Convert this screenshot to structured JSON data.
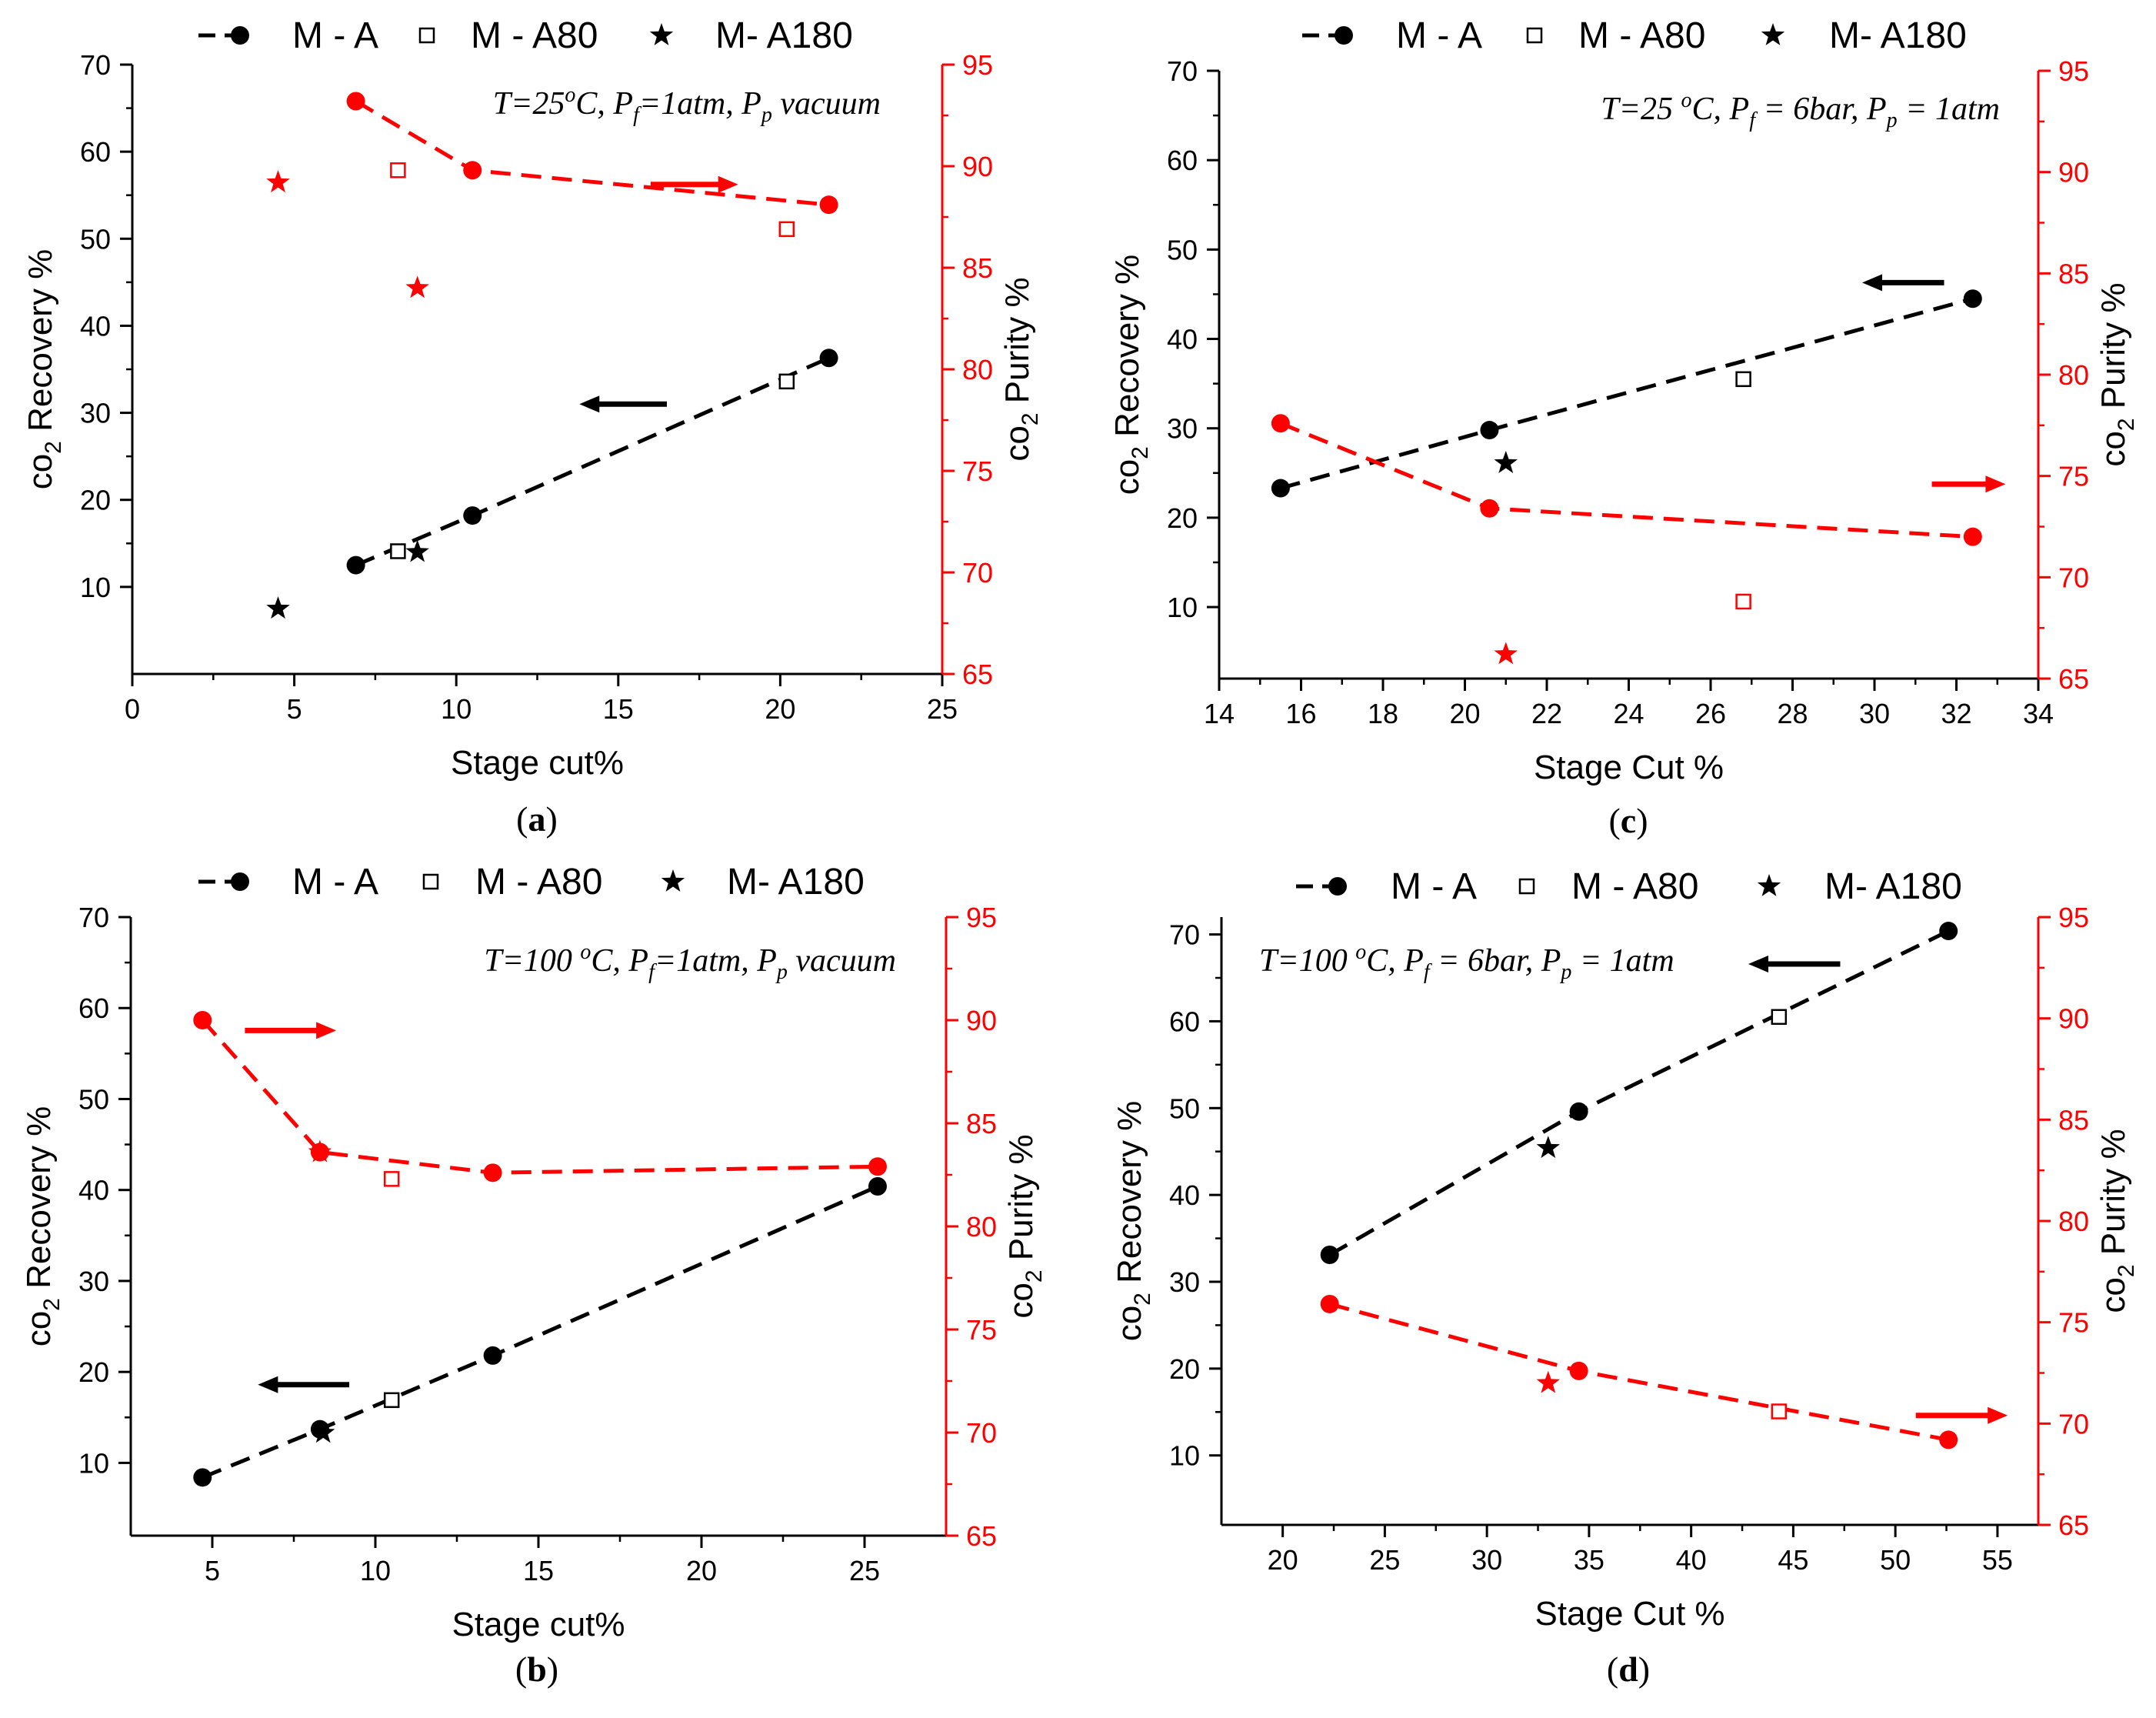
{
  "figure": {
    "legend": {
      "ma": "M - A",
      "a80": "M - A80",
      "a180": "M- A180"
    },
    "colors": {
      "black": "#000000",
      "red": "#ff0000"
    }
  },
  "chart_data": [
    {
      "id": "a",
      "type": "scatter",
      "panel_label": "a",
      "annotation": {
        "T": "T=25",
        "o": "o",
        "C": "C, P",
        "f": "f",
        "eq": "=1atm, P",
        "p": "p",
        "tail": " vacuum"
      },
      "xlabel": "Stage cut%",
      "ylabel_left": {
        "pre": "co",
        "sub": "2",
        "post": " Recovery %"
      },
      "ylabel_right": {
        "pre": "co",
        "sub": "2",
        "post": " Purity %"
      },
      "xlim": [
        0,
        25
      ],
      "xticks": [
        0,
        5,
        10,
        15,
        20,
        25
      ],
      "ylim_left": [
        0,
        70
      ],
      "yticks_left": [
        10,
        20,
        30,
        40,
        50,
        60,
        70
      ],
      "ylim_right": [
        65,
        95
      ],
      "yticks_right": [
        65,
        70,
        75,
        80,
        85,
        90,
        95
      ],
      "series": [
        {
          "name": "M - A",
          "axis": "left",
          "marker": "circle",
          "color": "#000000",
          "line": true,
          "x": [
            6.9,
            10.5,
            21.5
          ],
          "y": [
            12.5,
            18.2,
            36.3
          ]
        },
        {
          "name": "M - A80",
          "axis": "left",
          "marker": "square",
          "color": "#000000",
          "line": false,
          "x": [
            8.2,
            20.2
          ],
          "y": [
            14.1,
            33.6
          ]
        },
        {
          "name": "M- A180",
          "axis": "left",
          "marker": "star",
          "color": "#000000",
          "line": false,
          "x": [
            4.5,
            8.8
          ],
          "y": [
            7.5,
            14.0
          ]
        },
        {
          "name": "M - A",
          "axis": "right",
          "marker": "circle",
          "color": "#ff0000",
          "line": true,
          "x": [
            6.9,
            10.5,
            21.5
          ],
          "y": [
            93.2,
            89.8,
            88.1
          ]
        },
        {
          "name": "M - A80",
          "axis": "right",
          "marker": "square",
          "color": "#ff0000",
          "line": false,
          "x": [
            8.2,
            20.2
          ],
          "y": [
            89.8,
            86.9
          ]
        },
        {
          "name": "M- A180",
          "axis": "right",
          "marker": "star",
          "color": "#ff0000",
          "line": false,
          "x": [
            4.5,
            8.8
          ],
          "y": [
            89.2,
            84.0
          ]
        }
      ],
      "arrows": [
        {
          "color": "#ff0000",
          "direction": "right",
          "x": [
            16,
            18.7
          ],
          "y": 89.1,
          "axis": "right"
        },
        {
          "color": "#000000",
          "direction": "left",
          "x": [
            13.8,
            16.5
          ],
          "y": 31,
          "axis": "left"
        }
      ]
    },
    {
      "id": "c",
      "type": "scatter",
      "panel_label": "c",
      "annotation": {
        "T": "T=25 ",
        "o": "o",
        "C": "C, P",
        "f": "f",
        "eq": " = 6bar, P",
        "p": "p",
        "tail": " = 1atm"
      },
      "xlabel": "Stage Cut %",
      "ylabel_left": {
        "pre": "co",
        "sub": "2",
        "post": " Recovery %"
      },
      "ylabel_right": {
        "pre": "co",
        "sub": "2",
        "post": " Purity %"
      },
      "xlim": [
        14,
        34
      ],
      "xticks": [
        14,
        16,
        18,
        20,
        22,
        24,
        26,
        28,
        30,
        32,
        34
      ],
      "ylim_left": [
        2,
        70
      ],
      "yticks_left": [
        10,
        20,
        30,
        40,
        50,
        60,
        70
      ],
      "ylim_right": [
        65,
        95
      ],
      "yticks_right": [
        65,
        70,
        75,
        80,
        85,
        90,
        95
      ],
      "series": [
        {
          "name": "M - A",
          "axis": "left",
          "marker": "circle",
          "color": "#000000",
          "line": true,
          "x": [
            15.5,
            20.6,
            32.4
          ],
          "y": [
            23.3,
            29.8,
            44.5
          ]
        },
        {
          "name": "M - A80",
          "axis": "left",
          "marker": "square",
          "color": "#000000",
          "line": false,
          "x": [
            26.8
          ],
          "y": [
            35.5
          ]
        },
        {
          "name": "M- A180",
          "axis": "left",
          "marker": "star",
          "color": "#000000",
          "line": false,
          "x": [
            21.0
          ],
          "y": [
            26.1
          ]
        },
        {
          "name": "M - A",
          "axis": "right",
          "marker": "circle",
          "color": "#ff0000",
          "line": true,
          "x": [
            15.5,
            20.6,
            32.4
          ],
          "y": [
            77.6,
            73.4,
            72.0
          ]
        },
        {
          "name": "M - A80",
          "axis": "right",
          "marker": "square",
          "color": "#ff0000",
          "line": false,
          "x": [
            26.8
          ],
          "y": [
            68.8
          ]
        },
        {
          "name": "M- A180",
          "axis": "right",
          "marker": "star",
          "color": "#ff0000",
          "line": false,
          "x": [
            21.0
          ],
          "y": [
            66.2
          ]
        }
      ],
      "arrows": [
        {
          "color": "#000000",
          "direction": "left",
          "x": [
            29.7,
            31.7
          ],
          "y": 46.3,
          "axis": "left"
        },
        {
          "color": "#ff0000",
          "direction": "right",
          "x": [
            31.4,
            33.2
          ],
          "y": 74.6,
          "axis": "right"
        }
      ]
    },
    {
      "id": "b",
      "type": "scatter",
      "panel_label": "b",
      "annotation": {
        "T": "T=100 ",
        "o": "o",
        "C": "C, P",
        "f": "f",
        "eq": "=1atm, P",
        "p": "p",
        "tail": " vacuum"
      },
      "xlabel": "Stage cut%",
      "ylabel_left": {
        "pre": "co",
        "sub": "2",
        "post": " Recovery %"
      },
      "ylabel_right": {
        "pre": "co",
        "sub": "2",
        "post": " Purity %"
      },
      "xlim": [
        2.5,
        27.5
      ],
      "xticks": [
        5,
        10,
        15,
        20,
        25
      ],
      "ylim_left": [
        2,
        70
      ],
      "yticks_left": [
        10,
        20,
        30,
        40,
        50,
        60,
        70
      ],
      "ylim_right": [
        65,
        95
      ],
      "yticks_right": [
        65,
        70,
        75,
        80,
        85,
        90,
        95
      ],
      "series": [
        {
          "name": "M - A",
          "axis": "left",
          "marker": "circle",
          "color": "#000000",
          "line": true,
          "x": [
            4.7,
            8.3,
            13.6,
            25.4
          ],
          "y": [
            8.4,
            13.7,
            21.8,
            40.4
          ]
        },
        {
          "name": "M - A80",
          "axis": "left",
          "marker": "square",
          "color": "#000000",
          "line": false,
          "x": [
            10.5
          ],
          "y": [
            16.9
          ]
        },
        {
          "name": "M- A180",
          "axis": "left",
          "marker": "star",
          "color": "#000000",
          "line": false,
          "x": [
            8.4
          ],
          "y": [
            13.3
          ]
        },
        {
          "name": "M - A",
          "axis": "right",
          "marker": "circle",
          "color": "#ff0000",
          "line": true,
          "x": [
            4.7,
            8.3,
            13.6,
            25.4
          ],
          "y": [
            90.0,
            83.6,
            82.6,
            82.9
          ]
        },
        {
          "name": "M - A80",
          "axis": "right",
          "marker": "square",
          "color": "#ff0000",
          "line": false,
          "x": [
            10.5
          ],
          "y": [
            82.3
          ]
        },
        {
          "name": "M- A180",
          "axis": "right",
          "marker": "star",
          "color": "#ff0000",
          "line": false,
          "x": [
            8.3
          ],
          "y": [
            83.6
          ]
        }
      ],
      "arrows": [
        {
          "color": "#ff0000",
          "direction": "right",
          "x": [
            6.0,
            8.8
          ],
          "y": 89.5,
          "axis": "right"
        },
        {
          "color": "#000000",
          "direction": "left",
          "x": [
            6.4,
            9.2
          ],
          "y": 18.6,
          "axis": "left"
        }
      ]
    },
    {
      "id": "d",
      "type": "scatter",
      "panel_label": "d",
      "annotation": {
        "T": "T=100 ",
        "o": "o",
        "C": "C, P",
        "f": "f",
        "eq": " = 6bar, P",
        "p": "p",
        "tail": " = 1atm"
      },
      "xlabel": "Stage Cut %",
      "ylabel_left": {
        "pre": "co",
        "sub": "2",
        "post": " Recovery %"
      },
      "ylabel_right": {
        "pre": "co",
        "sub": "2",
        "post": " Purity %"
      },
      "xlim": [
        17,
        57
      ],
      "xticks": [
        20,
        25,
        30,
        35,
        40,
        45,
        50,
        55
      ],
      "ylim_left": [
        2,
        72
      ],
      "yticks_left": [
        10,
        20,
        30,
        40,
        50,
        60,
        70
      ],
      "ylim_right": [
        65,
        95
      ],
      "yticks_right": [
        65,
        70,
        75,
        80,
        85,
        90,
        95
      ],
      "series": [
        {
          "name": "M - A",
          "axis": "left",
          "marker": "circle",
          "color": "#000000",
          "line": true,
          "x": [
            22.3,
            34.5,
            52.6
          ],
          "y": [
            33.1,
            49.6,
            70.4
          ]
        },
        {
          "name": "M - A80",
          "axis": "left",
          "marker": "square",
          "color": "#000000",
          "line": false,
          "x": [
            44.3
          ],
          "y": [
            60.5
          ]
        },
        {
          "name": "M- A180",
          "axis": "left",
          "marker": "star",
          "color": "#000000",
          "line": false,
          "x": [
            33.0
          ],
          "y": [
            45.4
          ]
        },
        {
          "name": "M - A",
          "axis": "right",
          "marker": "circle",
          "color": "#ff0000",
          "line": true,
          "x": [
            22.3,
            34.5,
            52.6
          ],
          "y": [
            75.9,
            72.6,
            69.2
          ]
        },
        {
          "name": "M - A80",
          "axis": "right",
          "marker": "square",
          "color": "#ff0000",
          "line": false,
          "x": [
            44.3
          ],
          "y": [
            70.6
          ]
        },
        {
          "name": "M- A180",
          "axis": "right",
          "marker": "star",
          "color": "#ff0000",
          "line": false,
          "x": [
            33.0
          ],
          "y": [
            72.0
          ]
        }
      ],
      "arrows": [
        {
          "color": "#000000",
          "direction": "left",
          "x": [
            42.8,
            47.3
          ],
          "y": 66.6,
          "axis": "left"
        },
        {
          "color": "#ff0000",
          "direction": "right",
          "x": [
            51.0,
            55.5
          ],
          "y": 70.4,
          "axis": "right"
        }
      ]
    }
  ]
}
